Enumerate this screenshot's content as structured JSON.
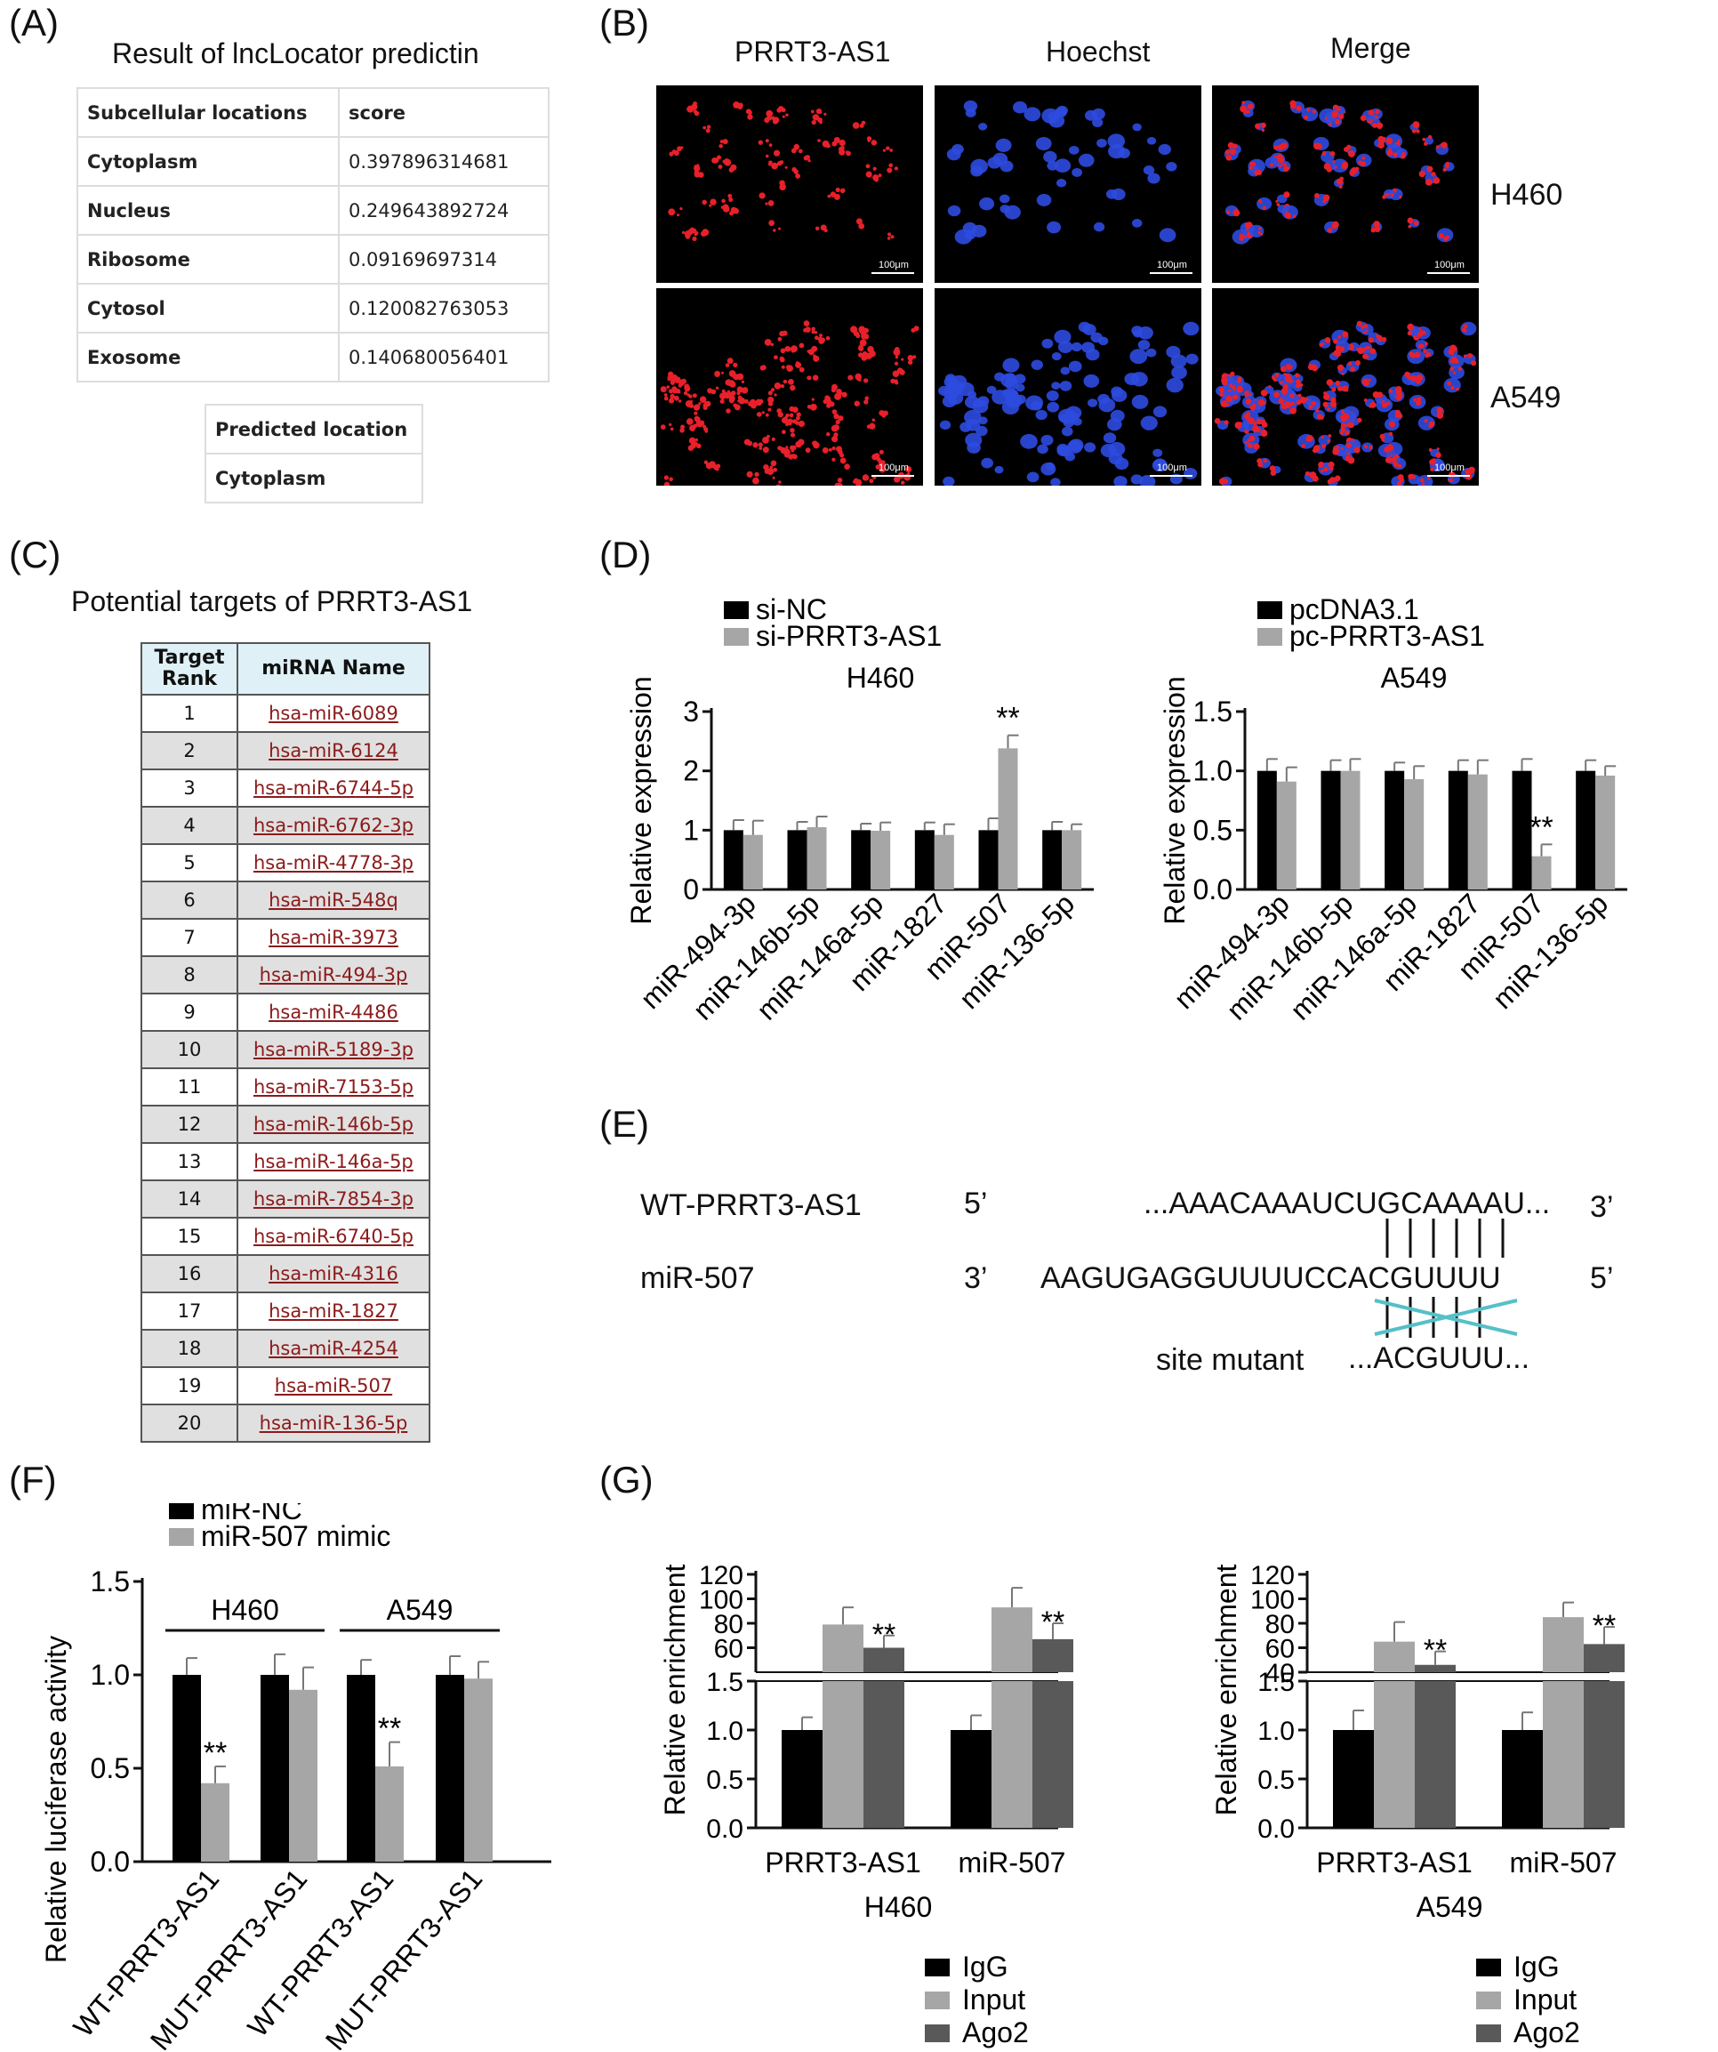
{
  "panels": {
    "A": "(A)",
    "B": "(B)",
    "C": "(C)",
    "D": "(D)",
    "E": "(E)",
    "F": "(F)",
    "G": "(G)"
  },
  "panelA": {
    "title": "Result of lncLocator predictin",
    "header": [
      "Subcellular locations",
      "score"
    ],
    "rows": [
      [
        "Cytoplasm",
        "0.397896314681"
      ],
      [
        "Nucleus",
        "0.249643892724"
      ],
      [
        "Ribosome",
        "0.09169697314"
      ],
      [
        "Cytosol",
        "0.120082763053"
      ],
      [
        "Exosome",
        "0.140680056401"
      ]
    ],
    "predicted_header": "Predicted location",
    "predicted_value": "Cytoplasm"
  },
  "panelB": {
    "columns": [
      "PRRT3-AS1",
      "Hoechst",
      "Merge"
    ],
    "rows": [
      "H460",
      "A549"
    ],
    "scalebar": "100μm"
  },
  "panelC": {
    "title": "Potential targets of PRRT3-AS1",
    "header": [
      "Target Rank",
      "miRNA Name"
    ],
    "rows": [
      [
        "1",
        "hsa-miR-6089"
      ],
      [
        "2",
        "hsa-miR-6124"
      ],
      [
        "3",
        "hsa-miR-6744-5p"
      ],
      [
        "4",
        "hsa-miR-6762-3p"
      ],
      [
        "5",
        "hsa-miR-4778-3p"
      ],
      [
        "6",
        "hsa-miR-548q"
      ],
      [
        "7",
        "hsa-miR-3973"
      ],
      [
        "8",
        "hsa-miR-494-3p"
      ],
      [
        "9",
        "hsa-miR-4486"
      ],
      [
        "10",
        "hsa-miR-5189-3p"
      ],
      [
        "11",
        "hsa-miR-7153-5p"
      ],
      [
        "12",
        "hsa-miR-146b-5p"
      ],
      [
        "13",
        "hsa-miR-146a-5p"
      ],
      [
        "14",
        "hsa-miR-7854-3p"
      ],
      [
        "15",
        "hsa-miR-6740-5p"
      ],
      [
        "16",
        "hsa-miR-4316"
      ],
      [
        "17",
        "hsa-miR-1827"
      ],
      [
        "18",
        "hsa-miR-4254"
      ],
      [
        "19",
        "hsa-miR-507"
      ],
      [
        "20",
        "hsa-miR-136-5p"
      ]
    ]
  },
  "panelE": {
    "wt_label": "WT-PRRT3-AS1",
    "wt_end5": "5’",
    "wt_seq": "...AAACAAAUCUGCAAAAU...",
    "wt_end3": "3’",
    "mir_label": "miR-507",
    "mir_end3": "3’",
    "mir_seq": "AAGUGAGGUUUUCCACGUUUU",
    "mir_end5": "5’",
    "mut_label": "site mutant",
    "mut_seq": "...ACGUUU..."
  },
  "colors": {
    "black": "#000000",
    "gray": "#a6a6a6",
    "dark": "#595959",
    "cross": "#55c0c8",
    "link": "#8b1a1a"
  },
  "chart_data": [
    {
      "id": "D-left",
      "type": "bar",
      "title": "H460",
      "ylabel": "Relative expression",
      "ylim": [
        0,
        3
      ],
      "yticks": [
        "0",
        "1",
        "2",
        "3"
      ],
      "categories": [
        "miR-494-3p",
        "miR-146b-5p",
        "miR-146a-5p",
        "miR-1827",
        "miR-507",
        "miR-136-5p"
      ],
      "series": [
        {
          "name": "si-NC",
          "values": [
            1.0,
            1.0,
            1.0,
            1.0,
            1.0,
            1.0
          ],
          "errors": [
            0.17,
            0.14,
            0.11,
            0.13,
            0.2,
            0.14
          ]
        },
        {
          "name": "si-PRRT3-AS1",
          "values": [
            0.92,
            1.05,
            0.99,
            0.92,
            2.38,
            1.0
          ],
          "errors": [
            0.24,
            0.18,
            0.14,
            0.18,
            0.22,
            0.1
          ]
        }
      ],
      "annotations": [
        {
          "category": "miR-507",
          "text": "**"
        }
      ]
    },
    {
      "id": "D-right",
      "type": "bar",
      "title": "A549",
      "ylabel": "Relative expression",
      "ylim": [
        0,
        1.5
      ],
      "yticks": [
        "0.0",
        "0.5",
        "1.0",
        "1.5"
      ],
      "categories": [
        "miR-494-3p",
        "miR-146b-5p",
        "miR-146a-5p",
        "miR-1827",
        "miR-507",
        "miR-136-5p"
      ],
      "series": [
        {
          "name": "pcDNA3.1",
          "values": [
            1.0,
            1.0,
            1.0,
            1.0,
            1.0,
            1.0
          ],
          "errors": [
            0.1,
            0.09,
            0.07,
            0.09,
            0.1,
            0.09
          ]
        },
        {
          "name": "pc-PRRT3-AS1",
          "values": [
            0.91,
            1.0,
            0.93,
            0.97,
            0.28,
            0.96
          ],
          "errors": [
            0.12,
            0.1,
            0.11,
            0.12,
            0.1,
            0.08
          ]
        }
      ],
      "annotations": [
        {
          "category": "miR-507",
          "text": "**"
        }
      ]
    },
    {
      "id": "F",
      "type": "bar",
      "ylabel": "Relative luciferase activity",
      "ylim": [
        0,
        1.5
      ],
      "yticks": [
        "0.0",
        "0.5",
        "1.0",
        "1.5"
      ],
      "categories": [
        "WT-PRRT3-AS1",
        "MUT-PRRT3-AS1",
        "WT-PRRT3-AS1",
        "MUT-PRRT3-AS1"
      ],
      "groups": [
        "H460",
        "A549"
      ],
      "series": [
        {
          "name": "miR-NC",
          "values": [
            1.0,
            1.0,
            1.0,
            1.0
          ],
          "errors": [
            0.09,
            0.11,
            0.08,
            0.1
          ]
        },
        {
          "name": "miR-507 mimic",
          "values": [
            0.42,
            0.92,
            0.51,
            0.98
          ],
          "errors": [
            0.09,
            0.12,
            0.13,
            0.09
          ]
        }
      ],
      "annotations": [
        {
          "category_index": 0,
          "text": "**"
        },
        {
          "category_index": 2,
          "text": "**"
        }
      ]
    },
    {
      "id": "G-left",
      "type": "bar",
      "xlabel": "H460",
      "ylabel": "Relative enrichment",
      "ylim_lower": [
        0,
        1.5
      ],
      "ylim_upper": [
        40,
        120
      ],
      "yticks_lower": [
        "0.0",
        "0.5",
        "1.0",
        "1.5"
      ],
      "yticks_upper": [
        "60",
        "80",
        "100",
        "120"
      ],
      "categories": [
        "PRRT3-AS1",
        "miR-507"
      ],
      "series": [
        {
          "name": "IgG",
          "values": [
            1.0,
            1.0
          ],
          "errors": [
            0.13,
            0.15
          ]
        },
        {
          "name": "Input",
          "values": [
            79,
            93
          ],
          "errors": [
            14,
            16
          ]
        },
        {
          "name": "Ago2",
          "values": [
            60,
            67
          ],
          "errors": [
            10,
            13
          ]
        }
      ],
      "annotations": [
        {
          "category": "PRRT3-AS1",
          "text": "**"
        },
        {
          "category": "miR-507",
          "text": "**"
        }
      ]
    },
    {
      "id": "G-right",
      "type": "bar",
      "xlabel": "A549",
      "ylabel": "Relative enrichment",
      "ylim_lower": [
        0,
        1.5
      ],
      "ylim_upper": [
        40,
        120
      ],
      "yticks_lower": [
        "0.0",
        "0.5",
        "1.0",
        "1.5"
      ],
      "yticks_upper": [
        "40",
        "60",
        "80",
        "100",
        "120"
      ],
      "categories": [
        "PRRT3-AS1",
        "miR-507"
      ],
      "series": [
        {
          "name": "IgG",
          "values": [
            1.0,
            1.0
          ],
          "errors": [
            0.2,
            0.18
          ]
        },
        {
          "name": "Input",
          "values": [
            65,
            85
          ],
          "errors": [
            16,
            12
          ]
        },
        {
          "name": "Ago2",
          "values": [
            46,
            63
          ],
          "errors": [
            11,
            14
          ]
        }
      ],
      "annotations": [
        {
          "category": "PRRT3-AS1",
          "text": "**"
        },
        {
          "category": "miR-507",
          "text": "**"
        }
      ]
    }
  ]
}
